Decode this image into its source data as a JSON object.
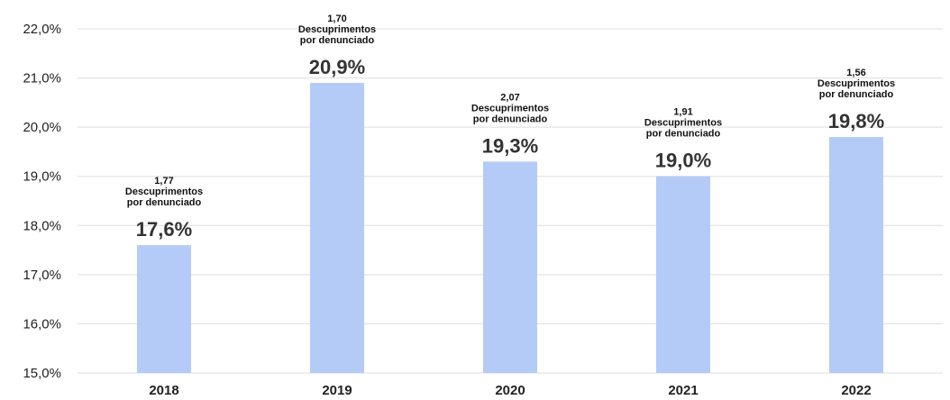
{
  "chart_data": {
    "type": "bar",
    "categories": [
      "2018",
      "2019",
      "2020",
      "2021",
      "2022"
    ],
    "values": [
      17.6,
      20.9,
      19.3,
      19.0,
      19.8
    ],
    "value_labels": [
      "17,6%",
      "20,9%",
      "19,3%",
      "19,0%",
      "19,8%"
    ],
    "annotations": [
      [
        "1,77",
        "Descuprimentos",
        "por denunciado"
      ],
      [
        "1,70",
        "Descuprimentos",
        "por denunciado"
      ],
      [
        "2,07",
        "Descuprimentos",
        "por denunciado"
      ],
      [
        "1,91",
        "Descuprimentos",
        "por denunciado"
      ],
      [
        "1,56",
        "Descuprimentos",
        "por denunciado"
      ]
    ],
    "y_ticks": [
      15,
      16,
      17,
      18,
      19,
      20,
      21,
      22
    ],
    "y_tick_labels": [
      "15,0%",
      "16,0%",
      "17,0%",
      "18,0%",
      "19,0%",
      "20,0%",
      "21,0%",
      "22,0%"
    ],
    "ylim": [
      15,
      22
    ],
    "grid": true,
    "bar_color": "#b4cbf7",
    "grid_color": "#dddddd"
  }
}
